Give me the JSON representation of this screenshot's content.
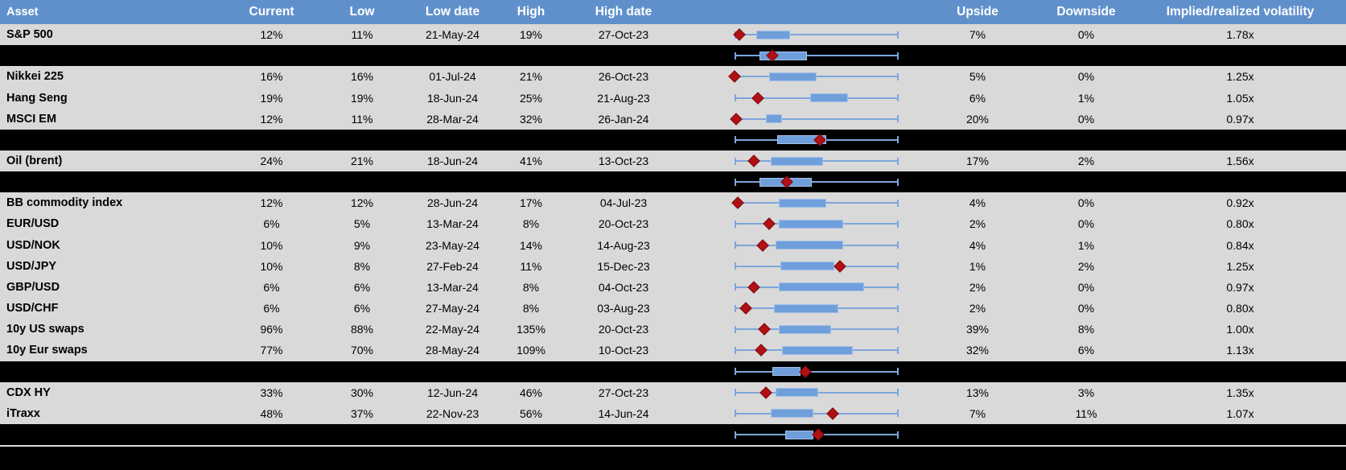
{
  "colors": {
    "header_bg": "#6090CC",
    "header_text": "#FFFFFF",
    "row_bg": "#D9D9D9",
    "summary_bg": "#000000",
    "box_fill": "#6F9FDB",
    "box_border": "#A3BFE6",
    "whisker_line": "#7CA6DD",
    "marker_fill": "#B01115",
    "marker_border": "#7D0B0E"
  },
  "chart_data": {
    "type": "table",
    "note": "Each row embeds a horizontal box plot: whiskers span low-to-high 1y vol range (0-100%), box = interquartile band, red diamond = current level; box_lo/box_hi/marker are % positions along the whisker span.",
    "headers": {
      "asset": "Asset",
      "current": "Current",
      "low": "Low",
      "low_date": "Low date",
      "high": "High",
      "high_date": "High date",
      "upside": "Upside",
      "downside": "Downside",
      "implied": "Implied/realized volatility"
    },
    "rows": [
      {
        "type": "data",
        "asset": "S&P 500",
        "current": "12%",
        "low": "11%",
        "low_date": "21-May-24",
        "high": "19%",
        "high_date": "27-Oct-23",
        "upside": "7%",
        "downside": "0%",
        "implied": "1.78x",
        "box_lo": 13,
        "box_hi": 34,
        "marker": 3
      },
      {
        "type": "summary",
        "asset": "",
        "current": "",
        "low": "",
        "low_date": "",
        "high": "",
        "high_date": "",
        "upside": "",
        "downside": "",
        "implied": "",
        "box_lo": 15,
        "box_hi": 44,
        "marker": 23
      },
      {
        "type": "data",
        "asset": "Nikkei 225",
        "current": "16%",
        "low": "16%",
        "low_date": "01-Jul-24",
        "high": "21%",
        "high_date": "26-Oct-23",
        "upside": "5%",
        "downside": "0%",
        "implied": "1.25x",
        "box_lo": 21,
        "box_hi": 50,
        "marker": 0
      },
      {
        "type": "data",
        "asset": "Hang Seng",
        "current": "19%",
        "low": "19%",
        "low_date": "18-Jun-24",
        "high": "25%",
        "high_date": "21-Aug-23",
        "upside": "6%",
        "downside": "1%",
        "implied": "1.05x",
        "box_lo": 46,
        "box_hi": 69,
        "marker": 14
      },
      {
        "type": "data",
        "asset": "MSCI EM",
        "current": "12%",
        "low": "11%",
        "low_date": "28-Mar-24",
        "high": "32%",
        "high_date": "26-Jan-24",
        "upside": "20%",
        "downside": "0%",
        "implied": "0.97x",
        "box_lo": 19,
        "box_hi": 29,
        "marker": 1
      },
      {
        "type": "summary",
        "asset": "",
        "current": "",
        "low": "",
        "low_date": "",
        "high": "",
        "high_date": "",
        "upside": "",
        "downside": "",
        "implied": "",
        "box_lo": 26,
        "box_hi": 56,
        "marker": 52
      },
      {
        "type": "data",
        "asset": "Oil (brent)",
        "current": "24%",
        "low": "21%",
        "low_date": "18-Jun-24",
        "high": "41%",
        "high_date": "13-Oct-23",
        "upside": "17%",
        "downside": "2%",
        "implied": "1.56x",
        "box_lo": 22,
        "box_hi": 54,
        "marker": 12
      },
      {
        "type": "summary",
        "asset": "",
        "current": "",
        "low": "",
        "low_date": "",
        "high": "",
        "high_date": "",
        "upside": "",
        "downside": "",
        "implied": "",
        "box_lo": 15,
        "box_hi": 47,
        "marker": 32
      },
      {
        "type": "data",
        "asset": "BB commodity index",
        "current": "12%",
        "low": "12%",
        "low_date": "28-Jun-24",
        "high": "17%",
        "high_date": "04-Jul-23",
        "upside": "4%",
        "downside": "0%",
        "implied": "0.92x",
        "box_lo": 27,
        "box_hi": 56,
        "marker": 2
      },
      {
        "type": "data",
        "asset": "EUR/USD",
        "current": "6%",
        "low": "5%",
        "low_date": "13-Mar-24",
        "high": "8%",
        "high_date": "20-Oct-23",
        "upside": "2%",
        "downside": "0%",
        "implied": "0.80x",
        "box_lo": 27,
        "box_hi": 66,
        "marker": 21
      },
      {
        "type": "data",
        "asset": "USD/NOK",
        "current": "10%",
        "low": "9%",
        "low_date": "23-May-24",
        "high": "14%",
        "high_date": "14-Aug-23",
        "upside": "4%",
        "downside": "1%",
        "implied": "0.84x",
        "box_lo": 25,
        "box_hi": 66,
        "marker": 17
      },
      {
        "type": "data",
        "asset": "USD/JPY",
        "current": "10%",
        "low": "8%",
        "low_date": "27-Feb-24",
        "high": "11%",
        "high_date": "15-Dec-23",
        "upside": "1%",
        "downside": "2%",
        "implied": "1.25x",
        "box_lo": 28,
        "box_hi": 61,
        "marker": 64
      },
      {
        "type": "data",
        "asset": "GBP/USD",
        "current": "6%",
        "low": "6%",
        "low_date": "13-Mar-24",
        "high": "8%",
        "high_date": "04-Oct-23",
        "upside": "2%",
        "downside": "0%",
        "implied": "0.97x",
        "box_lo": 27,
        "box_hi": 79,
        "marker": 12
      },
      {
        "type": "data",
        "asset": "USD/CHF",
        "current": "6%",
        "low": "6%",
        "low_date": "27-May-24",
        "high": "8%",
        "high_date": "03-Aug-23",
        "upside": "2%",
        "downside": "0%",
        "implied": "0.80x",
        "box_lo": 24,
        "box_hi": 63,
        "marker": 7
      },
      {
        "type": "data",
        "asset": "10y US swaps",
        "current": "96%",
        "low": "88%",
        "low_date": "22-May-24",
        "high": "135%",
        "high_date": "20-Oct-23",
        "upside": "39%",
        "downside": "8%",
        "implied": "1.00x",
        "box_lo": 27,
        "box_hi": 59,
        "marker": 18
      },
      {
        "type": "data",
        "asset": "10y Eur swaps",
        "current": "77%",
        "low": "70%",
        "low_date": "28-May-24",
        "high": "109%",
        "high_date": "10-Oct-23",
        "upside": "32%",
        "downside": "6%",
        "implied": "1.13x",
        "box_lo": 29,
        "box_hi": 72,
        "marker": 16
      },
      {
        "type": "summary",
        "asset": "",
        "current": "",
        "low": "",
        "low_date": "",
        "high": "",
        "high_date": "",
        "upside": "",
        "downside": "",
        "implied": "",
        "box_lo": 23,
        "box_hi": 40,
        "marker": 43
      },
      {
        "type": "data",
        "asset": "CDX HY",
        "current": "33%",
        "low": "30%",
        "low_date": "12-Jun-24",
        "high": "46%",
        "high_date": "27-Oct-23",
        "upside": "13%",
        "downside": "3%",
        "implied": "1.35x",
        "box_lo": 25,
        "box_hi": 51,
        "marker": 19
      },
      {
        "type": "data",
        "asset": "iTraxx",
        "current": "48%",
        "low": "37%",
        "low_date": "22-Nov-23",
        "high": "56%",
        "high_date": "14-Jun-24",
        "upside": "7%",
        "downside": "11%",
        "implied": "1.07x",
        "box_lo": 22,
        "box_hi": 48,
        "marker": 60
      },
      {
        "type": "summary",
        "asset": "",
        "current": "",
        "low": "",
        "low_date": "",
        "high": "",
        "high_date": "",
        "upside": "",
        "downside": "",
        "implied": "",
        "box_lo": 31,
        "box_hi": 48,
        "marker": 51
      }
    ]
  }
}
